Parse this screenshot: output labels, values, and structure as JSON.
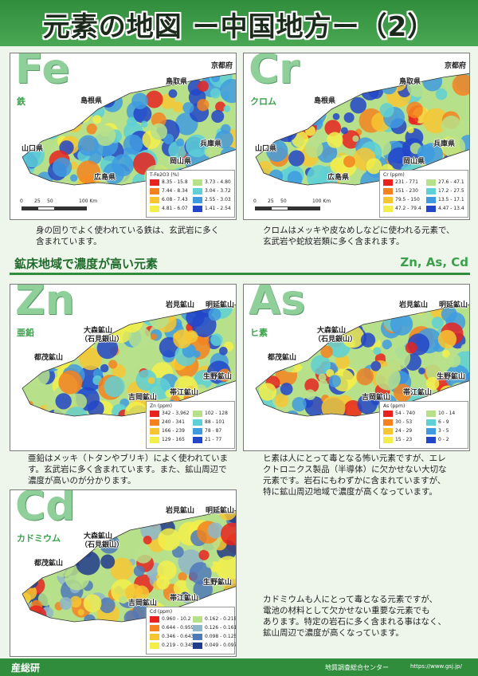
{
  "header": {
    "title": "元素の地図 ー中国地方ー（2）"
  },
  "section": {
    "title": "鉱床地域で濃度が高い元素",
    "elements": "Zn, As, Cd"
  },
  "maps": [
    {
      "symbol": "Fe",
      "name": "鉄",
      "places": [
        "京都府",
        "鳥取県",
        "島根県",
        "山口県",
        "兵庫県",
        "岡山県",
        "広島県"
      ],
      "legend": {
        "title": "T-Fe2O3 (%)",
        "items": [
          {
            "label": "8.35 - 15.8",
            "color": "#e8231f"
          },
          {
            "label": "7.44 - 8.34",
            "color": "#f5821f"
          },
          {
            "label": "6.08 - 7.43",
            "color": "#f7c531"
          },
          {
            "label": "4.81 - 6.07",
            "color": "#f3ee4a"
          },
          {
            "label": "3.73 - 4.80",
            "color": "#b7e08a"
          },
          {
            "label": "3.04 - 3.72",
            "color": "#5fd0d6"
          },
          {
            "label": "2.55 - 3.03",
            "color": "#3f9be0"
          },
          {
            "label": "1.41 - 2.54",
            "color": "#2345c8"
          }
        ]
      },
      "scale": [
        "0",
        "25",
        "50",
        "100 Km"
      ],
      "caption": [
        "身の回りでよく使われている鉄は、玄武岩に多く",
        "含まれています。"
      ]
    },
    {
      "symbol": "Cr",
      "name": "クロム",
      "places": [
        "京都府",
        "鳥取県",
        "島根県",
        "山口県",
        "兵庫県",
        "岡山県",
        "広島県"
      ],
      "legend": {
        "title": "Cr (ppm)",
        "items": [
          {
            "label": "231 - 771",
            "color": "#e8231f"
          },
          {
            "label": "151 - 230",
            "color": "#f5821f"
          },
          {
            "label": "79.5 - 150",
            "color": "#f7c531"
          },
          {
            "label": "47.2 - 79.4",
            "color": "#f3ee4a"
          },
          {
            "label": "27.6 - 47.1",
            "color": "#b7e08a"
          },
          {
            "label": "17.2 - 27.5",
            "color": "#5fd0d6"
          },
          {
            "label": "13.5 - 17.1",
            "color": "#3f9be0"
          },
          {
            "label": "4.47 - 13.4",
            "color": "#2345c8"
          }
        ]
      },
      "scale": [
        "0",
        "25",
        "50",
        "100 Km"
      ],
      "caption": [
        "クロムはメッキや皮なめしなどに使われる元素で、",
        "玄武岩や蛇紋岩類に多く含まれます。"
      ]
    },
    {
      "symbol": "Zn",
      "name": "亜鉛",
      "places": [
        "岩見鉱山",
        "明延鉱山",
        "大森鉱山",
        "（石見銀山）",
        "都茂鉱山",
        "生野鉱山",
        "帯江鉱山",
        "吉岡鉱山"
      ],
      "legend": {
        "title": "Zn (ppm)",
        "items": [
          {
            "label": "342 - 3,962",
            "color": "#e8231f"
          },
          {
            "label": "240 - 341",
            "color": "#f5821f"
          },
          {
            "label": "166 - 239",
            "color": "#f7c531"
          },
          {
            "label": "129 - 165",
            "color": "#f3ee4a"
          },
          {
            "label": "102 - 128",
            "color": "#b7e08a"
          },
          {
            "label": "88 - 101",
            "color": "#5fd0d6"
          },
          {
            "label": "78 - 87",
            "color": "#3f9be0"
          },
          {
            "label": "21 - 77",
            "color": "#2345c8"
          }
        ]
      },
      "scale": [],
      "caption": [
        "亜鉛はメッキ（トタンやブリキ）によく使われていま",
        "す。玄武岩に多く含まれています。また、鉱山周辺で",
        "濃度が高いのが分かります。"
      ]
    },
    {
      "symbol": "As",
      "name": "ヒ素",
      "places": [
        "岩見鉱山",
        "明延鉱山",
        "大森鉱山",
        "（石見銀山）",
        "都茂鉱山",
        "生野鉱山",
        "帯江鉱山",
        "吉岡鉱山"
      ],
      "legend": {
        "title": "As (ppm)",
        "items": [
          {
            "label": "54 - 740",
            "color": "#e8231f"
          },
          {
            "label": "30 - 53",
            "color": "#f5821f"
          },
          {
            "label": "24 - 29",
            "color": "#f7c531"
          },
          {
            "label": "15 - 23",
            "color": "#f3ee4a"
          },
          {
            "label": "10 - 14",
            "color": "#b7e08a"
          },
          {
            "label": "6 - 9",
            "color": "#5fd0d6"
          },
          {
            "label": "3 - 5",
            "color": "#3f9be0"
          },
          {
            "label": "0 - 2",
            "color": "#2345c8"
          }
        ]
      },
      "scale": [],
      "caption": [
        "ヒ素は人にとって毒となる怖い元素ですが、エレ",
        "クトロニクス製品（半導体）に欠かせない大切な",
        "元素です。岩石にもわずかに含まれていますが、",
        "特に鉱山周辺地域で濃度が高くなっています。"
      ]
    },
    {
      "symbol": "Cd",
      "name": "カドミウム",
      "places": [
        "岩見鉱山",
        "明延鉱山",
        "大森鉱山",
        "（石見銀山）",
        "都茂鉱山",
        "生野鉱山",
        "帯江鉱山",
        "吉岡鉱山"
      ],
      "legend": {
        "title": "Cd (ppm)",
        "items": [
          {
            "label": "0.960 - 10.2",
            "color": "#e8231f"
          },
          {
            "label": "0.644 - 0.959",
            "color": "#f5821f"
          },
          {
            "label": "0.346 - 0.643",
            "color": "#f7c531"
          },
          {
            "label": "0.219 - 0.345",
            "color": "#f3ee4a"
          },
          {
            "label": "0.162 - 0.218",
            "color": "#b7e08a"
          },
          {
            "label": "0.126 - 0.161",
            "color": "#8fb6c9"
          },
          {
            "label": "0.098 - 0.125",
            "color": "#4f79b8"
          },
          {
            "label": "0.049 - 0.097",
            "color": "#203a8c"
          }
        ]
      },
      "scale": [],
      "caption": [
        "カドミウムも人にとって毒となる元素ですが、",
        "電池の材料として欠かせない重要な元素でも",
        "あります。特定の岩石に多く含まれる事はなく、",
        "鉱山周辺で濃度が高くなっています。"
      ]
    }
  ],
  "footer": {
    "logo": "産総研",
    "org": "地質調査総合センター",
    "url": "https://www.gsj.jp/"
  }
}
